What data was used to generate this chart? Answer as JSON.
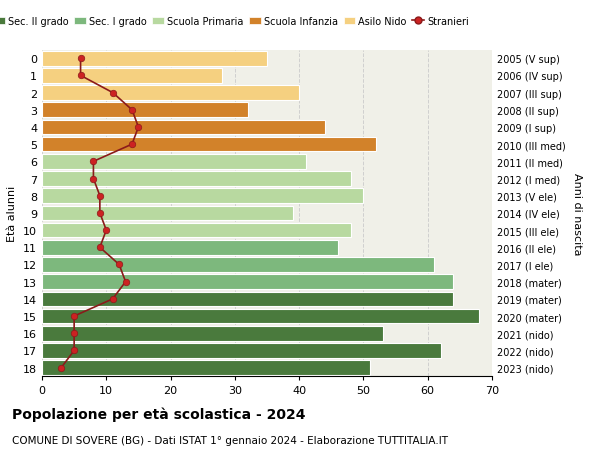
{
  "ages": [
    0,
    1,
    2,
    3,
    4,
    5,
    6,
    7,
    8,
    9,
    10,
    11,
    12,
    13,
    14,
    15,
    16,
    17,
    18
  ],
  "years_labels": [
    "2023 (nido)",
    "2022 (nido)",
    "2021 (nido)",
    "2020 (mater)",
    "2019 (mater)",
    "2018 (mater)",
    "2017 (I ele)",
    "2016 (II ele)",
    "2015 (III ele)",
    "2014 (IV ele)",
    "2013 (V ele)",
    "2012 (I med)",
    "2011 (II med)",
    "2010 (III med)",
    "2009 (I sup)",
    "2008 (II sup)",
    "2007 (III sup)",
    "2006 (IV sup)",
    "2005 (V sup)"
  ],
  "bar_values": [
    35,
    28,
    40,
    32,
    44,
    52,
    41,
    48,
    50,
    39,
    48,
    46,
    61,
    64,
    64,
    68,
    53,
    62,
    51
  ],
  "bar_colors": [
    "#f5d080",
    "#f5d080",
    "#f5d080",
    "#d2822a",
    "#d2822a",
    "#d2822a",
    "#b8d9a0",
    "#b8d9a0",
    "#b8d9a0",
    "#b8d9a0",
    "#b8d9a0",
    "#7db87d",
    "#7db87d",
    "#7db87d",
    "#4a7a3d",
    "#4a7a3d",
    "#4a7a3d",
    "#4a7a3d",
    "#4a7a3d"
  ],
  "stranieri_values": [
    6,
    6,
    11,
    14,
    15,
    14,
    8,
    8,
    9,
    9,
    10,
    9,
    12,
    13,
    11,
    5,
    5,
    5,
    3
  ],
  "legend_labels": [
    "Sec. II grado",
    "Sec. I grado",
    "Scuola Primaria",
    "Scuola Infanzia",
    "Asilo Nido",
    "Stranieri"
  ],
  "legend_colors": [
    "#4a7a3d",
    "#7db87d",
    "#b8d9a0",
    "#d2822a",
    "#f5d080",
    "#cc2222"
  ],
  "title": "Popolazione per età scolastica - 2024",
  "subtitle": "COMUNE DI SOVERE (BG) - Dati ISTAT 1° gennaio 2024 - Elaborazione TUTTITALIA.IT",
  "ylabel_left": "Età alunni",
  "ylabel_right": "Anni di nascita",
  "xlim": [
    0,
    70
  ],
  "xticks": [
    0,
    10,
    20,
    30,
    40,
    50,
    60,
    70
  ],
  "background_color": "#ffffff",
  "bar_background": "#f0f0e8"
}
